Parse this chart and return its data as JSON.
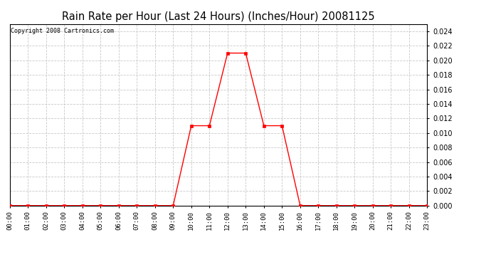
{
  "title": "Rain Rate per Hour (Last 24 Hours) (Inches/Hour) 20081125",
  "copyright": "Copyright 2008 Cartronics.com",
  "background_color": "#ffffff",
  "plot_background": "#ffffff",
  "line_color": "#ff0000",
  "marker_color": "#ff0000",
  "grid_color": "#c8c8c8",
  "hours": [
    0,
    1,
    2,
    3,
    4,
    5,
    6,
    7,
    8,
    9,
    10,
    11,
    12,
    13,
    14,
    15,
    16,
    17,
    18,
    19,
    20,
    21,
    22,
    23
  ],
  "values": [
    0,
    0,
    0,
    0,
    0,
    0,
    0,
    0,
    0,
    0,
    0.011,
    0.011,
    0.021,
    0.021,
    0.011,
    0.011,
    0,
    0,
    0,
    0,
    0,
    0,
    0,
    0
  ],
  "ylim": [
    0,
    0.025
  ],
  "yticks": [
    0.0,
    0.002,
    0.004,
    0.006,
    0.008,
    0.01,
    0.012,
    0.014,
    0.016,
    0.018,
    0.02,
    0.022,
    0.024
  ],
  "xlim": [
    0,
    23
  ],
  "hour_labels": [
    "00:00",
    "01:00",
    "02:00",
    "03:00",
    "04:00",
    "05:00",
    "06:00",
    "07:00",
    "08:00",
    "09:00",
    "10:00",
    "11:00",
    "12:00",
    "13:00",
    "14:00",
    "15:00",
    "16:00",
    "17:00",
    "18:00",
    "19:00",
    "20:00",
    "21:00",
    "22:00",
    "23:00"
  ],
  "title_fontsize": 10.5,
  "tick_fontsize": 6.5,
  "ytick_fontsize": 7
}
